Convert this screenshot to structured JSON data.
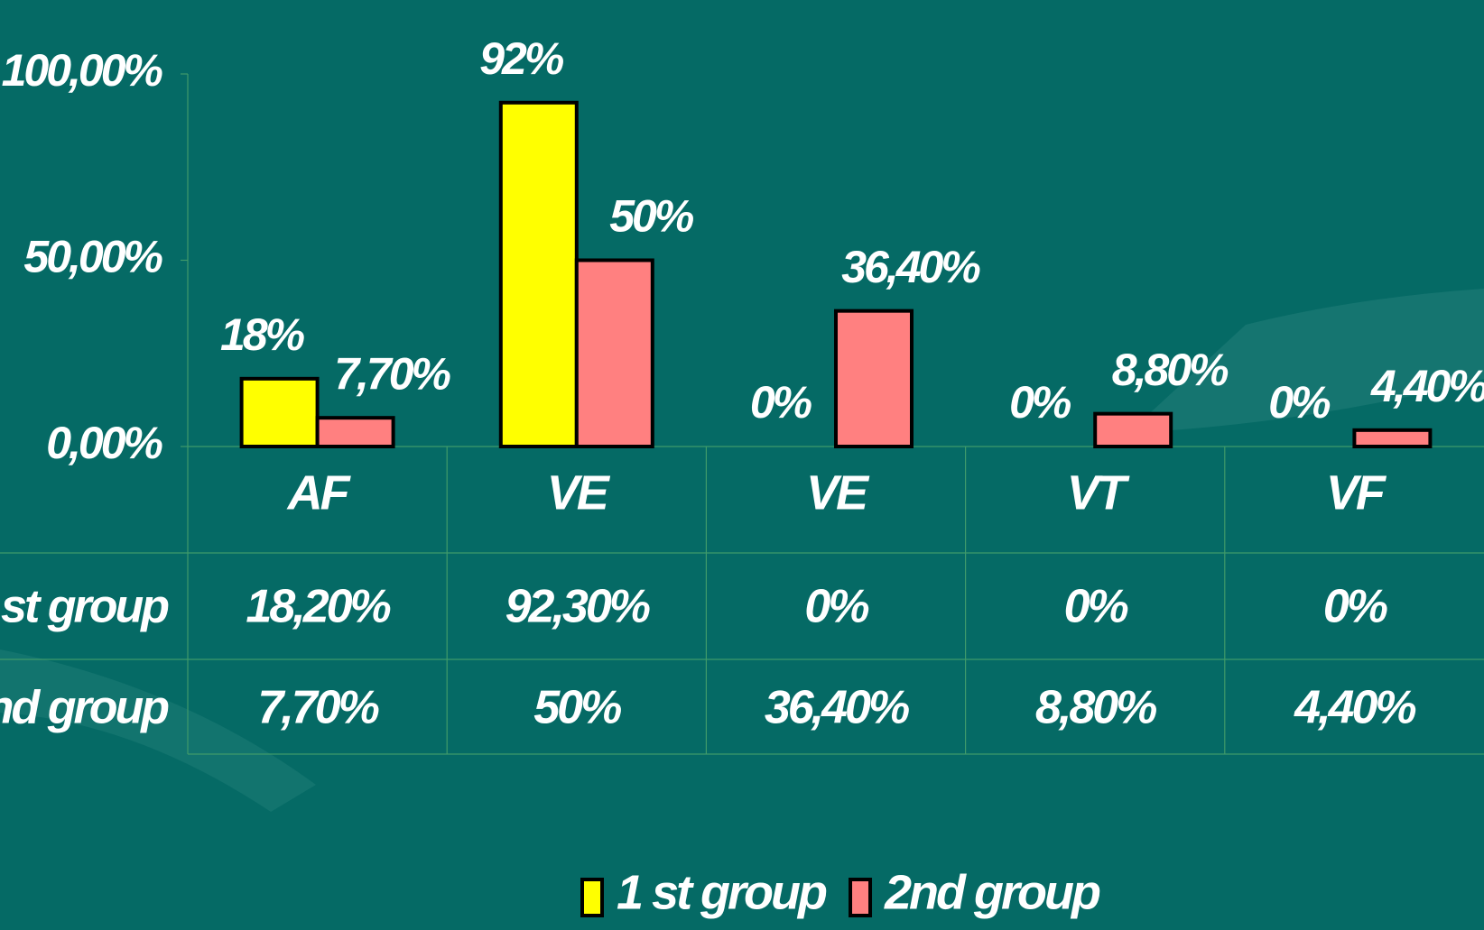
{
  "chart_data": {
    "type": "bar",
    "categories": [
      "AF",
      "VE",
      "VE",
      "VT",
      "VF"
    ],
    "series": [
      {
        "name": "1 st group",
        "color": "#ffff00",
        "values": [
          18.2,
          92.3,
          0,
          0,
          0
        ],
        "value_labels": [
          "18%",
          "92%",
          "0%",
          "0%",
          "0%"
        ],
        "table_labels": [
          "18,20%",
          "92,30%",
          "0%",
          "0%",
          "0%"
        ]
      },
      {
        "name": "2nd group",
        "color": "#ff8080",
        "values": [
          7.7,
          50,
          36.4,
          8.8,
          4.4
        ],
        "value_labels": [
          "7,70%",
          "50%",
          "36,40%",
          "8,80%",
          "4,40%"
        ],
        "table_labels": [
          "7,70%",
          "50%",
          "36,40%",
          "8,80%",
          "4,40%"
        ]
      }
    ],
    "ylim": [
      0,
      100
    ],
    "yticks": [
      {
        "value": 0,
        "label": "0,00%"
      },
      {
        "value": 50,
        "label": "50,00%"
      },
      {
        "value": 100,
        "label": "100,00%"
      }
    ],
    "grid": false,
    "legend": "bottom"
  }
}
